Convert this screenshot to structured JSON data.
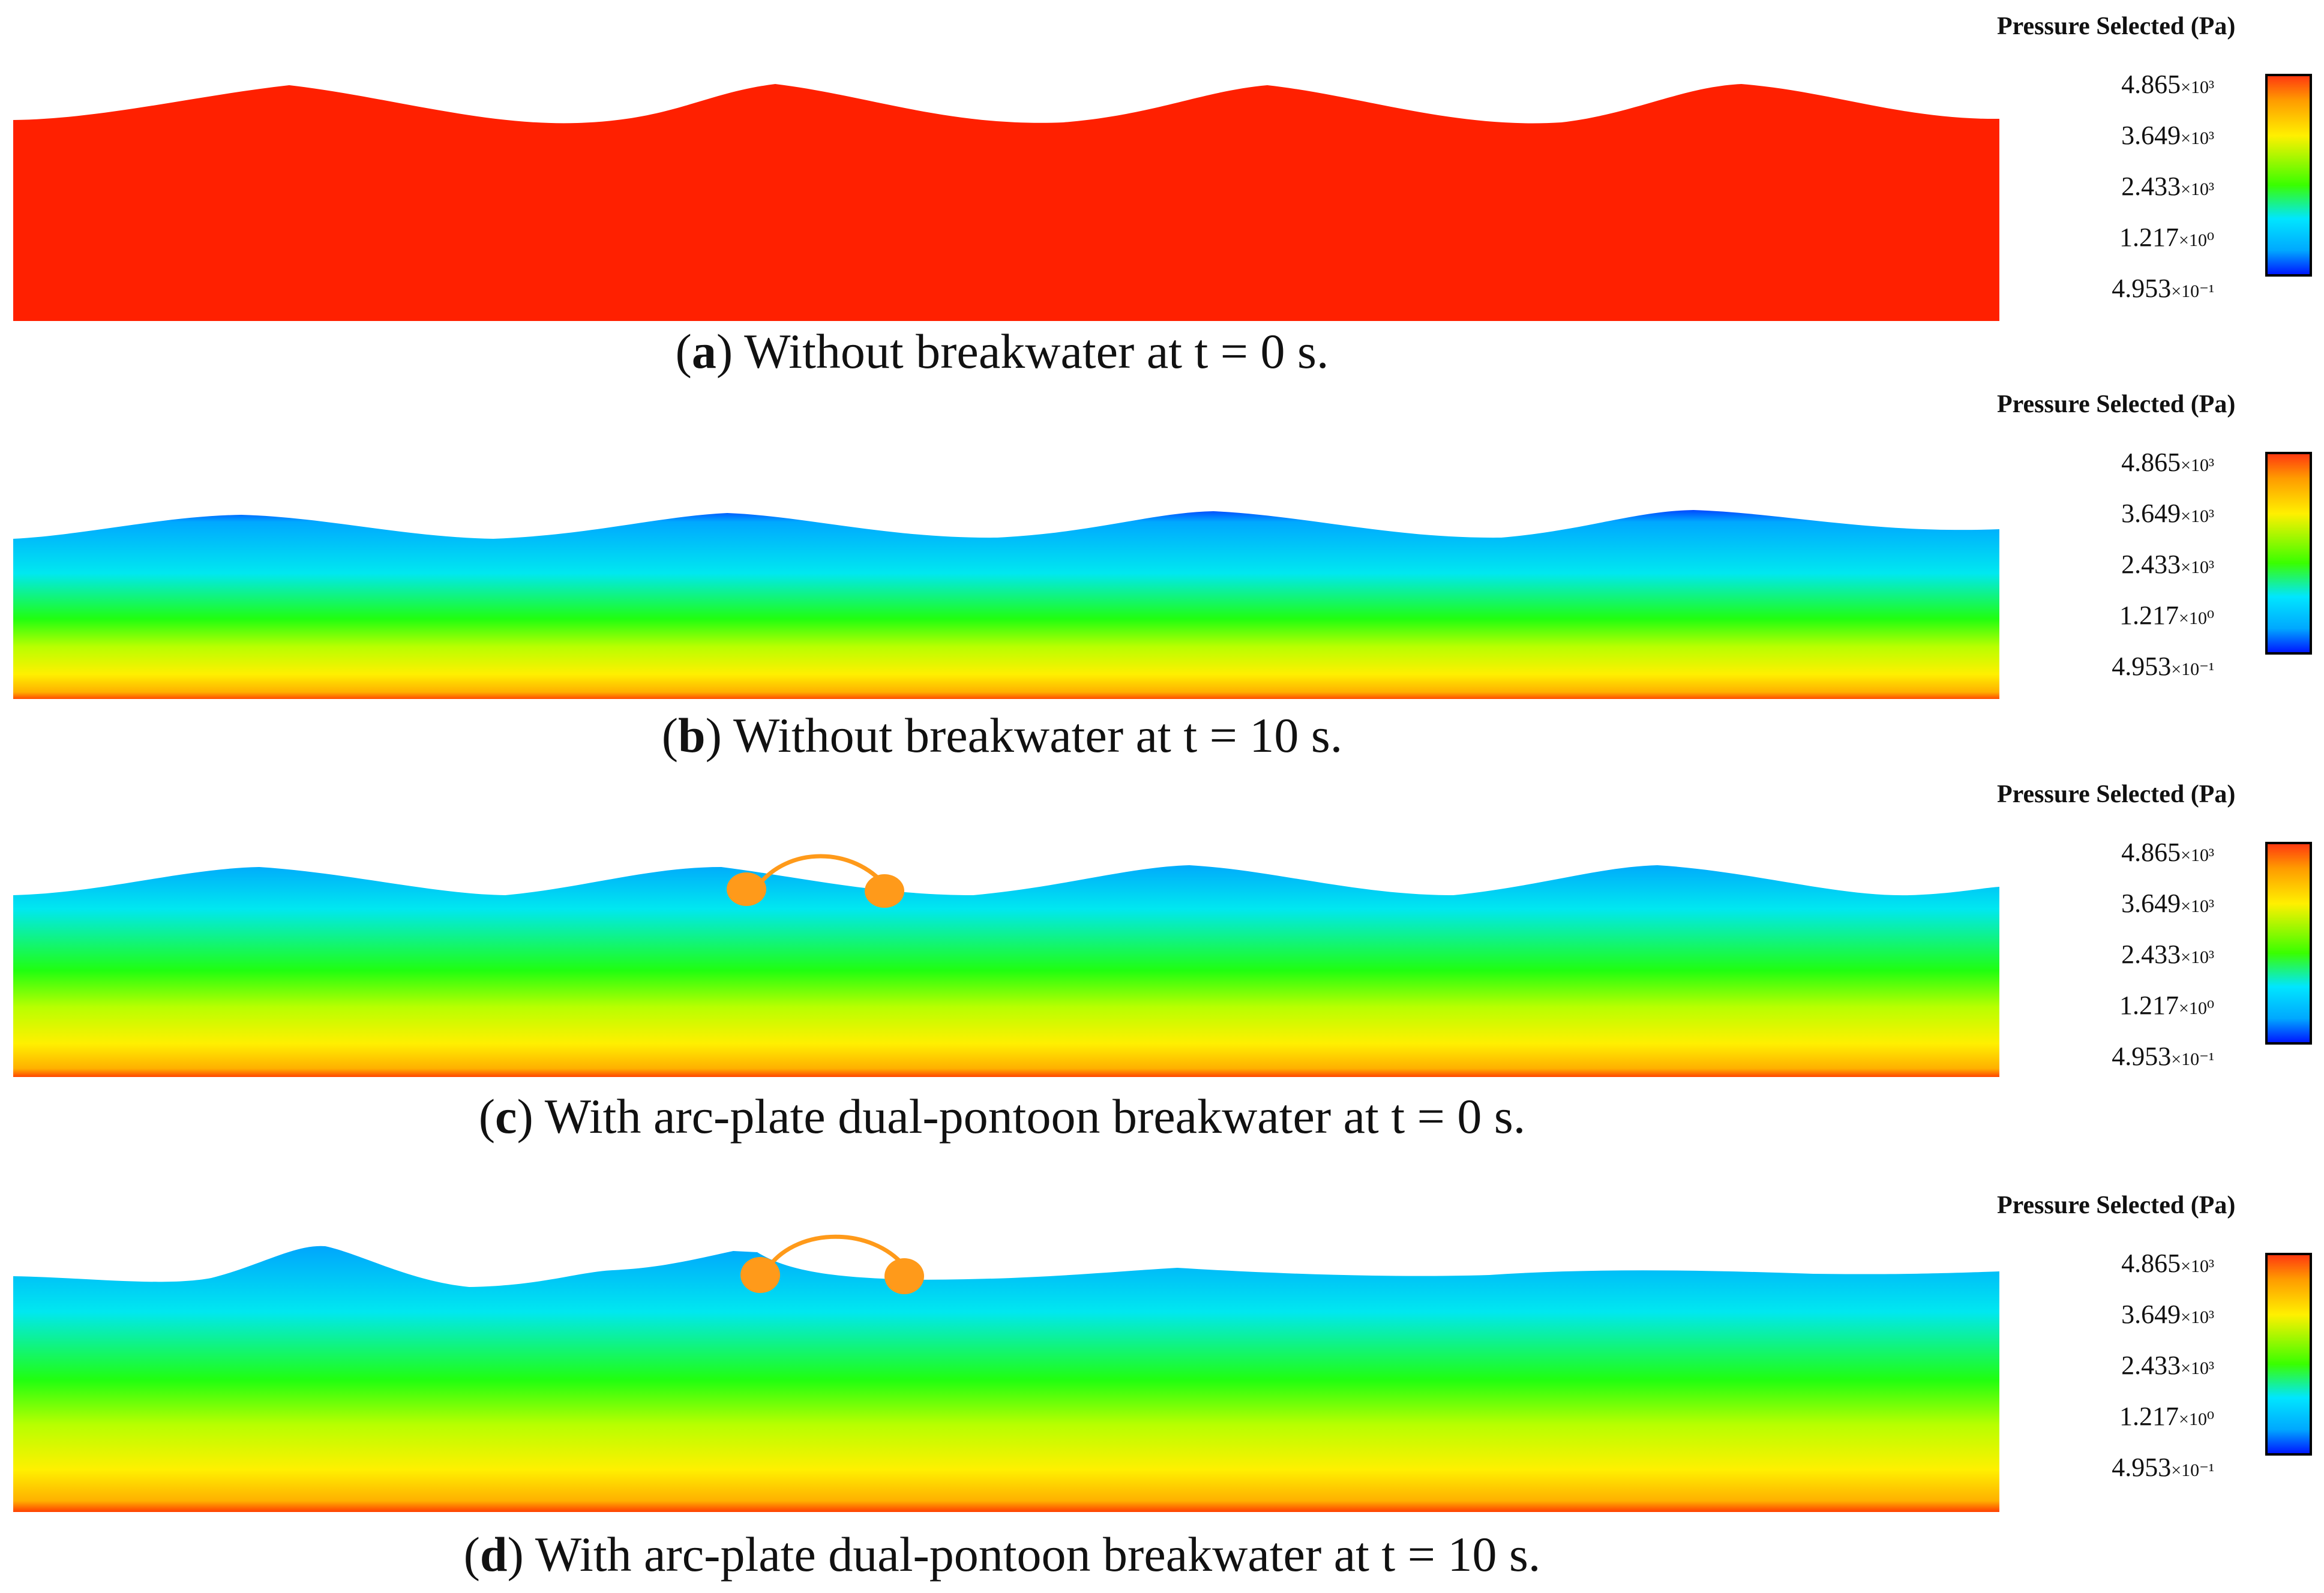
{
  "legend": {
    "title": "Pressure Selected (Pa)",
    "ticks": [
      {
        "mantissa": "4.865",
        "exp": "×10³"
      },
      {
        "mantissa": "3.649",
        "exp": "×10³"
      },
      {
        "mantissa": "2.433",
        "exp": "×10³"
      },
      {
        "mantissa": "1.217",
        "exp": "×10⁰"
      },
      {
        "mantissa": "4.953",
        "exp": "×10⁻¹"
      }
    ],
    "colormap": [
      "#0018ff",
      "#00a8ff",
      "#00e6ff",
      "#39ff00",
      "#fff000",
      "#ff9a00",
      "#ff3a10"
    ]
  },
  "panels": [
    {
      "letter": "a",
      "caption_pre": "(",
      "caption_post": ") Without breakwater at t = 0 s.",
      "has_breakwater": false
    },
    {
      "letter": "b",
      "caption_pre": "(",
      "caption_post": ") Without breakwater at t = 10 s.",
      "has_breakwater": false
    },
    {
      "letter": "c",
      "caption_pre": "(",
      "caption_post": ") With arc-plate dual-pontoon breakwater at t = 0 s.",
      "has_breakwater": true
    },
    {
      "letter": "d",
      "caption_pre": "(",
      "caption_post": ") With arc-plate dual-pontoon breakwater at t = 10 s.",
      "has_breakwater": true
    }
  ],
  "colors": {
    "breakwater": "#ff9a1a",
    "water_surface": "#0010e0"
  }
}
